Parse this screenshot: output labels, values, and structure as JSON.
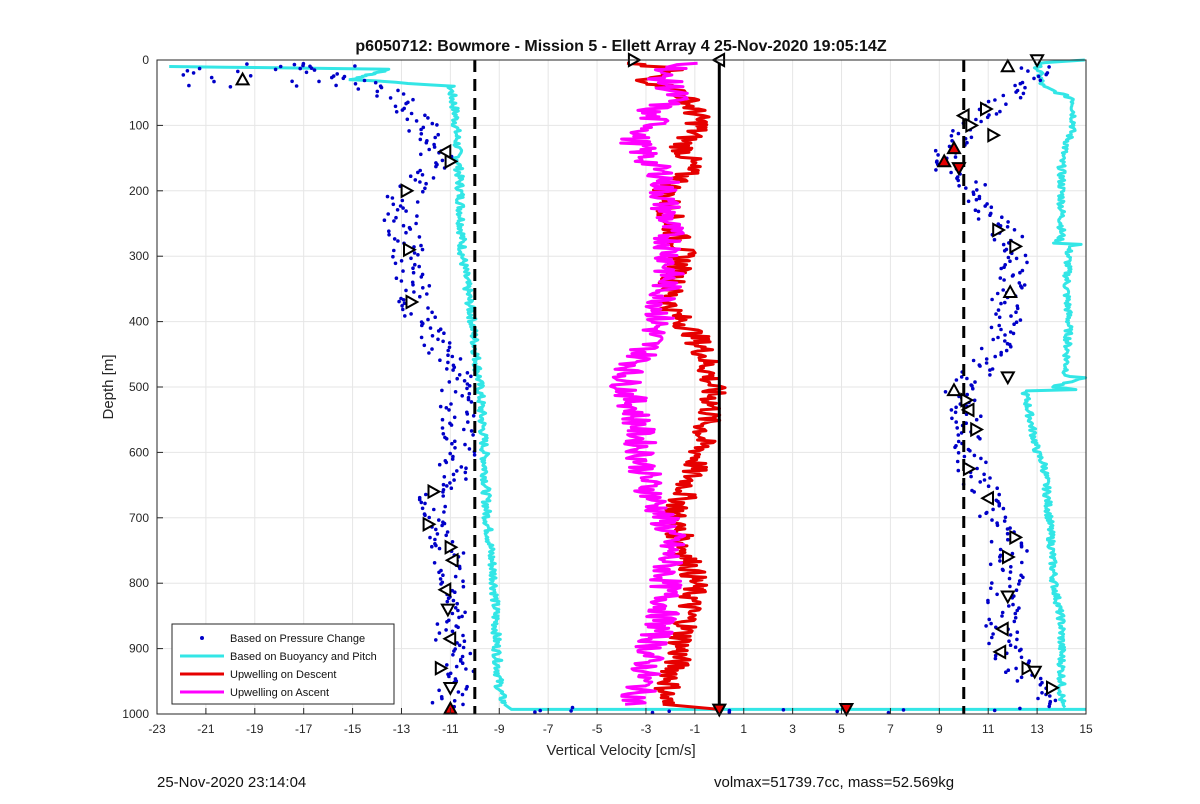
{
  "chart_data": {
    "type": "scatter",
    "title": "p6050712: Bowmore - Mission 5 - Ellett Array 4 25-Nov-2020 19:05:14Z",
    "xlabel": "Vertical Velocity [cm/s]",
    "ylabel": "Depth [m]",
    "xlim": [
      -23,
      15
    ],
    "ylim": [
      0,
      1000
    ],
    "y_reversed": true,
    "grid": true,
    "xticks": [
      -23,
      -21,
      -19,
      -17,
      -15,
      -13,
      -11,
      -9,
      -7,
      -5,
      -3,
      -1,
      1,
      3,
      5,
      7,
      9,
      11,
      13,
      15
    ],
    "yticks": [
      0,
      100,
      200,
      300,
      400,
      500,
      600,
      700,
      800,
      900,
      1000
    ],
    "legend": {
      "placement": "bottom-left",
      "entries": [
        {
          "label": "Based on Pressure Change",
          "color": "#0000c8",
          "style": "dots"
        },
        {
          "label": "Based on Buoyancy and Pitch",
          "color": "#33e6e6",
          "style": "line"
        },
        {
          "label": "Upwelling on Descent",
          "color": "#e60000",
          "style": "line"
        },
        {
          "label": "Upwelling on Ascent",
          "color": "#ff00ff",
          "style": "line"
        }
      ]
    },
    "reference_lines": [
      {
        "x": -10,
        "style": "dashed",
        "color": "#000000"
      },
      {
        "x": 10,
        "style": "dashed",
        "color": "#000000"
      },
      {
        "x": 0,
        "style": "solid",
        "color": "#000000"
      }
    ],
    "series": [
      {
        "name": "Based on Pressure Change",
        "kind": "pressure",
        "color": "#0000c8",
        "left": [
          [
            10,
            -18
          ],
          [
            30,
            -15
          ],
          [
            50,
            -13.5
          ],
          [
            70,
            -13
          ],
          [
            90,
            -12.5
          ],
          [
            110,
            -12
          ],
          [
            130,
            -11.8
          ],
          [
            150,
            -11.5
          ],
          [
            170,
            -12
          ],
          [
            190,
            -12.5
          ],
          [
            210,
            -13
          ],
          [
            230,
            -13
          ],
          [
            250,
            -13
          ],
          [
            270,
            -12.9
          ],
          [
            290,
            -12.8
          ],
          [
            310,
            -12.7
          ],
          [
            330,
            -12.6
          ],
          [
            350,
            -12.5
          ],
          [
            370,
            -12.6
          ],
          [
            390,
            -12.3
          ],
          [
            410,
            -12
          ],
          [
            430,
            -11.6
          ],
          [
            450,
            -11.2
          ],
          [
            470,
            -10.9
          ],
          [
            490,
            -10.7
          ],
          [
            510,
            -10.8
          ],
          [
            530,
            -10.8
          ],
          [
            550,
            -10.7
          ],
          [
            570,
            -10.6
          ],
          [
            590,
            -10.6
          ],
          [
            610,
            -10.7
          ],
          [
            630,
            -10.8
          ],
          [
            650,
            -11.2
          ],
          [
            670,
            -11.6
          ],
          [
            690,
            -11.8
          ],
          [
            710,
            -11.8
          ],
          [
            730,
            -11.5
          ],
          [
            750,
            -11.2
          ],
          [
            770,
            -11
          ],
          [
            790,
            -10.8
          ],
          [
            810,
            -10.7
          ],
          [
            830,
            -10.8
          ],
          [
            850,
            -10.9
          ],
          [
            870,
            -11
          ],
          [
            890,
            -11
          ],
          [
            910,
            -10.8
          ],
          [
            930,
            -10.7
          ],
          [
            950,
            -10.8
          ],
          [
            970,
            -11
          ],
          [
            990,
            -11.2
          ]
        ],
        "right": [
          [
            10,
            13
          ],
          [
            30,
            12.5
          ],
          [
            50,
            12
          ],
          [
            70,
            11.5
          ],
          [
            90,
            10.5
          ],
          [
            110,
            9.9
          ],
          [
            130,
            9.5
          ],
          [
            150,
            9.3
          ],
          [
            170,
            9.5
          ],
          [
            190,
            10.2
          ],
          [
            210,
            10.7
          ],
          [
            230,
            11
          ],
          [
            250,
            11.3
          ],
          [
            270,
            11.7
          ],
          [
            290,
            12
          ],
          [
            310,
            12.2
          ],
          [
            330,
            12.2
          ],
          [
            350,
            12
          ],
          [
            370,
            11.8
          ],
          [
            390,
            11.7
          ],
          [
            410,
            11.7
          ],
          [
            430,
            11.5
          ],
          [
            450,
            11.2
          ],
          [
            470,
            10.8
          ],
          [
            490,
            10.3
          ],
          [
            510,
            9.8
          ],
          [
            530,
            9.9
          ],
          [
            550,
            10.1
          ],
          [
            570,
            10.2
          ],
          [
            590,
            10.2
          ],
          [
            610,
            10.2
          ],
          [
            630,
            10.3
          ],
          [
            650,
            10.6
          ],
          [
            670,
            11
          ],
          [
            690,
            11.2
          ],
          [
            710,
            11.5
          ],
          [
            730,
            11.8
          ],
          [
            750,
            11.9
          ],
          [
            770,
            11.8
          ],
          [
            790,
            11.8
          ],
          [
            810,
            11.7
          ],
          [
            830,
            11.6
          ],
          [
            850,
            11.5
          ],
          [
            870,
            11.5
          ],
          [
            890,
            11.6
          ],
          [
            910,
            11.8
          ],
          [
            930,
            12.2
          ],
          [
            950,
            12.8
          ],
          [
            970,
            13.3
          ],
          [
            990,
            14
          ]
        ]
      },
      {
        "name": "Based on Buoyancy and Pitch",
        "kind": "buoyancy",
        "color": "#33e6e6",
        "left": [
          [
            10,
            -22.5
          ],
          [
            14,
            -13.5
          ],
          [
            30,
            -15
          ],
          [
            40,
            -11
          ],
          [
            80,
            -10.8
          ],
          [
            140,
            -10.7
          ],
          [
            200,
            -10.6
          ],
          [
            300,
            -10.5
          ],
          [
            400,
            -10.1
          ],
          [
            500,
            -9.8
          ],
          [
            600,
            -9.6
          ],
          [
            700,
            -9.5
          ],
          [
            800,
            -9.2
          ],
          [
            900,
            -9.1
          ],
          [
            960,
            -9
          ],
          [
            985,
            -8.8
          ],
          [
            993,
            -8.5
          ],
          [
            993,
            15
          ]
        ],
        "right": [
          [
            0,
            15
          ],
          [
            5,
            13
          ],
          [
            40,
            13.2
          ],
          [
            60,
            14.5
          ],
          [
            100,
            14.5
          ],
          [
            150,
            14
          ],
          [
            200,
            14
          ],
          [
            270,
            14
          ],
          [
            280,
            13.8
          ],
          [
            281,
            15
          ],
          [
            285,
            14.3
          ],
          [
            350,
            14.2
          ],
          [
            400,
            14.3
          ],
          [
            470,
            14.2
          ],
          [
            485,
            14.2
          ],
          [
            486,
            15
          ],
          [
            500,
            13.5
          ],
          [
            505,
            15
          ],
          [
            506,
            12.5
          ],
          [
            600,
            13
          ],
          [
            620,
            13.3
          ],
          [
            700,
            13.5
          ],
          [
            800,
            13.7
          ],
          [
            860,
            14
          ],
          [
            900,
            14
          ],
          [
            930,
            14
          ],
          [
            990,
            14
          ]
        ]
      },
      {
        "name": "Upwelling on Descent",
        "kind": "descent",
        "color": "#e60000",
        "points": [
          [
            5,
            -3.5
          ],
          [
            15,
            -2
          ],
          [
            30,
            -3
          ],
          [
            50,
            -1.5
          ],
          [
            80,
            -1
          ],
          [
            100,
            -0.8
          ],
          [
            130,
            -1.5
          ],
          [
            160,
            -1.2
          ],
          [
            180,
            -1.5
          ],
          [
            200,
            -2.2
          ],
          [
            230,
            -2
          ],
          [
            250,
            -2
          ],
          [
            280,
            -1.6
          ],
          [
            300,
            -1.5
          ],
          [
            330,
            -1.8
          ],
          [
            350,
            -2
          ],
          [
            380,
            -2
          ],
          [
            400,
            -1.5
          ],
          [
            420,
            -1
          ],
          [
            450,
            -0.6
          ],
          [
            480,
            -0.4
          ],
          [
            500,
            -0.3
          ],
          [
            530,
            -0.3
          ],
          [
            560,
            -0.6
          ],
          [
            600,
            -0.8
          ],
          [
            640,
            -1.2
          ],
          [
            680,
            -1.6
          ],
          [
            700,
            -1.9
          ],
          [
            740,
            -1.5
          ],
          [
            770,
            -1.2
          ],
          [
            800,
            -1
          ],
          [
            830,
            -1.2
          ],
          [
            860,
            -1.3
          ],
          [
            880,
            -1.5
          ],
          [
            900,
            -1.6
          ],
          [
            930,
            -1.8
          ],
          [
            960,
            -2.1
          ],
          [
            985,
            -2.3
          ],
          [
            993,
            0
          ]
        ]
      },
      {
        "name": "Upwelling on Ascent",
        "kind": "ascent",
        "color": "#ff00ff",
        "points": [
          [
            5,
            -1
          ],
          [
            20,
            -2.5
          ],
          [
            40,
            -2
          ],
          [
            60,
            -1.8
          ],
          [
            80,
            -3
          ],
          [
            100,
            -2.5
          ],
          [
            120,
            -3.5
          ],
          [
            150,
            -3
          ],
          [
            180,
            -2.2
          ],
          [
            200,
            -2.3
          ],
          [
            250,
            -2.1
          ],
          [
            300,
            -2
          ],
          [
            350,
            -2.2
          ],
          [
            400,
            -2.5
          ],
          [
            430,
            -2.8
          ],
          [
            460,
            -3.3
          ],
          [
            480,
            -3.8
          ],
          [
            500,
            -3.8
          ],
          [
            530,
            -3.5
          ],
          [
            560,
            -3.3
          ],
          [
            600,
            -3.2
          ],
          [
            640,
            -3
          ],
          [
            670,
            -2.7
          ],
          [
            700,
            -2.3
          ],
          [
            730,
            -2
          ],
          [
            760,
            -2.1
          ],
          [
            800,
            -2.2
          ],
          [
            830,
            -2.2
          ],
          [
            860,
            -2.4
          ],
          [
            880,
            -2.6
          ],
          [
            900,
            -2.8
          ],
          [
            930,
            -3
          ],
          [
            960,
            -3.2
          ],
          [
            985,
            -3.5
          ]
        ]
      }
    ],
    "markers": [
      {
        "x": -19.5,
        "y": 30,
        "shape": "tri-up"
      },
      {
        "x": -11.2,
        "y": 140,
        "shape": "tri-left"
      },
      {
        "x": -11,
        "y": 155,
        "shape": "tri-right"
      },
      {
        "x": -12.8,
        "y": 200,
        "shape": "tri-right"
      },
      {
        "x": -12.7,
        "y": 290,
        "shape": "tri-right"
      },
      {
        "x": -12.6,
        "y": 370,
        "shape": "tri-right"
      },
      {
        "x": -11.7,
        "y": 660,
        "shape": "tri-right"
      },
      {
        "x": -11.9,
        "y": 710,
        "shape": "tri-right"
      },
      {
        "x": -11,
        "y": 745,
        "shape": "tri-right"
      },
      {
        "x": -10.9,
        "y": 765,
        "shape": "tri-left"
      },
      {
        "x": -11.2,
        "y": 810,
        "shape": "tri-left"
      },
      {
        "x": -11.1,
        "y": 840,
        "shape": "tri-down"
      },
      {
        "x": -11,
        "y": 885,
        "shape": "tri-left"
      },
      {
        "x": -11.4,
        "y": 930,
        "shape": "tri-right"
      },
      {
        "x": -11,
        "y": 960,
        "shape": "tri-down"
      },
      {
        "x": -11,
        "y": 992,
        "shape": "tri-up",
        "fill": "#e60000"
      },
      {
        "x": -3.5,
        "y": 0,
        "shape": "tri-right"
      },
      {
        "x": 0,
        "y": 0,
        "shape": "tri-left"
      },
      {
        "x": 0,
        "y": 993,
        "shape": "tri-down",
        "fill": "#e60000"
      },
      {
        "x": 5.2,
        "y": 992,
        "shape": "tri-down",
        "fill": "#e60000"
      },
      {
        "x": 13,
        "y": 0,
        "shape": "tri-down"
      },
      {
        "x": 11.8,
        "y": 10,
        "shape": "tri-up"
      },
      {
        "x": 10.9,
        "y": 75,
        "shape": "tri-right"
      },
      {
        "x": 10,
        "y": 85,
        "shape": "tri-left"
      },
      {
        "x": 10.3,
        "y": 100,
        "shape": "tri-right"
      },
      {
        "x": 11.2,
        "y": 115,
        "shape": "tri-right"
      },
      {
        "x": 9.6,
        "y": 135,
        "shape": "tri-up",
        "fill": "#e60000"
      },
      {
        "x": 9.2,
        "y": 155,
        "shape": "tri-up",
        "fill": "#e60000"
      },
      {
        "x": 9.8,
        "y": 165,
        "shape": "tri-down",
        "fill": "#e60000"
      },
      {
        "x": 11.4,
        "y": 260,
        "shape": "tri-right"
      },
      {
        "x": 12.1,
        "y": 285,
        "shape": "tri-right"
      },
      {
        "x": 11.9,
        "y": 355,
        "shape": "tri-up"
      },
      {
        "x": 11.8,
        "y": 485,
        "shape": "tri-down"
      },
      {
        "x": 9.6,
        "y": 505,
        "shape": "tri-up"
      },
      {
        "x": 10.1,
        "y": 520,
        "shape": "tri-right"
      },
      {
        "x": 10.2,
        "y": 535,
        "shape": "tri-left"
      },
      {
        "x": 10.5,
        "y": 565,
        "shape": "tri-right"
      },
      {
        "x": 10.2,
        "y": 625,
        "shape": "tri-right"
      },
      {
        "x": 11,
        "y": 670,
        "shape": "tri-left"
      },
      {
        "x": 12.1,
        "y": 730,
        "shape": "tri-right"
      },
      {
        "x": 11.8,
        "y": 760,
        "shape": "tri-right"
      },
      {
        "x": 11.8,
        "y": 820,
        "shape": "tri-down"
      },
      {
        "x": 11.6,
        "y": 870,
        "shape": "tri-left"
      },
      {
        "x": 11.5,
        "y": 905,
        "shape": "tri-left"
      },
      {
        "x": 12.6,
        "y": 930,
        "shape": "tri-right"
      },
      {
        "x": 12.9,
        "y": 935,
        "shape": "tri-down"
      },
      {
        "x": 13.6,
        "y": 960,
        "shape": "tri-right"
      }
    ]
  },
  "footer": {
    "timestamp": "25-Nov-2020 23:14:04",
    "stats": "volmax=51739.7cc, mass=52.569kg"
  }
}
